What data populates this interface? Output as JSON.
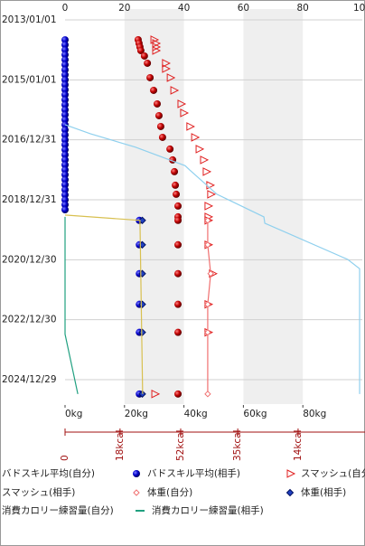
{
  "chart_data": {
    "type": "scatter",
    "xlim": [
      0,
      100
    ],
    "xticks": [
      0,
      20,
      40,
      60,
      80,
      100
    ],
    "shaded_bands": [
      [
        20,
        40
      ],
      [
        60,
        80
      ]
    ],
    "ylim": [
      "2012/08/22",
      "2025/10/22"
    ],
    "yticks": [
      "2013/01/01",
      "2015/01/01",
      "2016/12/31",
      "2018/12/31",
      "2020/12/30",
      "2022/12/30",
      "2024/12/29"
    ],
    "grid": true,
    "kg_ticks": [
      {
        "value": 0,
        "label": "0kg"
      },
      {
        "value": 20,
        "label": "20kg"
      },
      {
        "value": 40,
        "label": "40kg"
      },
      {
        "value": 60,
        "label": "60kg"
      },
      {
        "value": 80,
        "label": "80kg"
      }
    ],
    "kcal_ticks": [
      0,
      {
        "value": 18.5,
        "label": "18kcal"
      },
      {
        "value": 38.9,
        "label": "52kcal"
      },
      {
        "value": 58.1,
        "label": "35kcal"
      },
      {
        "value": 78.4,
        "label": "14kcal"
      }
    ],
    "series": [
      {
        "name": "バドスキル平均(自分)",
        "color": "#c00000",
        "marker": "circle",
        "x": [
          "2013/08/31",
          "2013/10/14",
          "2013/11/27",
          "2014/01/10",
          "2014/03/17",
          "2014/06/13",
          "2014/12/06",
          "2015/05/09",
          "2015/10/21",
          "2016/03/12",
          "2016/07/22",
          "2016/12/01",
          "2017/04/23",
          "2017/09/02",
          "2018/01/23",
          "2018/07/07",
          "2018/10/25",
          "2019/03/17",
          "2019/07/27",
          "2019/09/08",
          "2020/07/01",
          "2021/06/17",
          "2022/06/26",
          "2023/06/02",
          "2025/06/21"
        ],
        "values": [
          24.6,
          24.9,
          25.2,
          25.5,
          26.7,
          27.7,
          28.6,
          29.8,
          31,
          31.6,
          32.2,
          32.8,
          35.3,
          36.2,
          36.8,
          37.1,
          37.4,
          38,
          38,
          38,
          38,
          38,
          38,
          38,
          38
        ]
      },
      {
        "name": "バドスキル平均(相手)",
        "color": "#0000cc",
        "marker": "circle",
        "x": [
          "2013/09/01",
          "2013/11/01",
          "2014/01/01",
          "2014/03/01",
          "2014/05/01",
          "2014/07/01",
          "2014/09/01",
          "2014/11/01",
          "2015/01/01",
          "2015/03/01",
          "2015/05/01",
          "2015/07/01",
          "2015/09/01",
          "2015/11/01",
          "2016/01/01",
          "2016/03/01",
          "2016/05/01",
          "2016/07/01",
          "2016/09/01",
          "2016/11/01",
          "2017/01/01",
          "2017/03/01",
          "2017/05/01",
          "2017/07/01",
          "2017/09/01",
          "2017/11/01",
          "2018/01/01",
          "2018/03/01",
          "2018/05/01",
          "2018/07/01",
          "2018/09/01",
          "2018/11/01",
          "2019/01/01",
          "2019/03/01",
          "2019/05/01",
          "2019/09/08",
          "2020/07/01",
          "2021/06/17",
          "2022/06/26",
          "2023/06/02",
          "2025/06/21"
        ],
        "values": [
          0,
          0,
          0,
          0,
          0,
          0,
          0,
          0,
          0,
          0,
          0,
          0,
          0,
          0,
          0,
          0,
          0,
          0,
          0,
          0,
          0,
          0,
          0,
          0,
          0,
          0,
          0,
          0,
          0,
          0,
          0,
          0,
          0,
          0,
          0,
          25,
          25,
          25,
          25,
          25,
          25
        ]
      },
      {
        "name": "スマッシュ(自分)",
        "color": "#e02020",
        "marker": "triangle",
        "x": [
          "2013/08/31",
          "2013/10/14",
          "2013/11/27",
          "2014/01/10",
          "2014/06/13",
          "2014/08/18",
          "2014/12/06",
          "2015/05/09",
          "2015/10/21",
          "2016/02/08",
          "2016/07/22",
          "2016/12/01",
          "2017/04/23",
          "2017/09/02",
          "2018/01/23",
          "2018/07/07",
          "2018/10/25",
          "2019/03/17",
          "2019/07/27",
          "2019/09/08",
          "2020/07/01",
          "2021/06/17",
          "2022/06/26",
          "2023/06/02",
          "2025/06/21"
        ],
        "values": [
          29.8,
          30.4,
          30.4,
          30.4,
          33.7,
          33.7,
          35.3,
          36.5,
          38.9,
          39.8,
          41.9,
          43.5,
          45,
          46.5,
          47.4,
          48.6,
          48.9,
          48,
          48,
          48,
          48,
          49.5,
          48,
          48,
          30.1
        ]
      },
      {
        "name": "スマッシュ(相手)",
        "color": "#8fd0ee",
        "marker": "none",
        "x": [
          "2016/06/30",
          "2016/10/18",
          "2017/03/31",
          "2017/11/11",
          "2018/01/01",
          "2018/10/25",
          "2019/07/27",
          "2019/10/12",
          "2020/12/26",
          "2021/04/18",
          "2025/06/21"
        ],
        "values": [
          0,
          8.5,
          23.7,
          40.4,
          41.9,
          51.1,
          66.9,
          67.2,
          95.1,
          99.1,
          99.1
        ]
      },
      {
        "name": "体重(自分)",
        "color": "#f07070",
        "marker": "diamond",
        "x": [
          "2019/09/08",
          "2020/07/01",
          "2021/06/17",
          "2022/06/26",
          "2023/06/02",
          "2025/06/21"
        ],
        "values": [
          48,
          48,
          49,
          48,
          48,
          48
        ]
      },
      {
        "name": "体重(相手)",
        "color": "#2040c0",
        "marker": "diamond-filled",
        "x": [
          "2019/09/08",
          "2020/07/01",
          "2021/06/17",
          "2022/06/26",
          "2023/06/02",
          "2025/06/21"
        ],
        "values": [
          26,
          26,
          26,
          26,
          26,
          26
        ]
      },
      {
        "name": "消費カロリー練習量(自分)",
        "color": "#d8c050",
        "marker": "none",
        "x": [
          "2019/07/05",
          "2019/09/08",
          "2025/06/21"
        ],
        "values": [
          0,
          25.2,
          26.1
        ]
      },
      {
        "name": "消費カロリー練習量(相手)",
        "color": "#20a080",
        "marker": "none",
        "x": [
          "2019/07/27",
          "2023/06/24",
          "2025/06/21"
        ],
        "values": [
          0,
          0,
          4.3
        ]
      }
    ]
  }
}
